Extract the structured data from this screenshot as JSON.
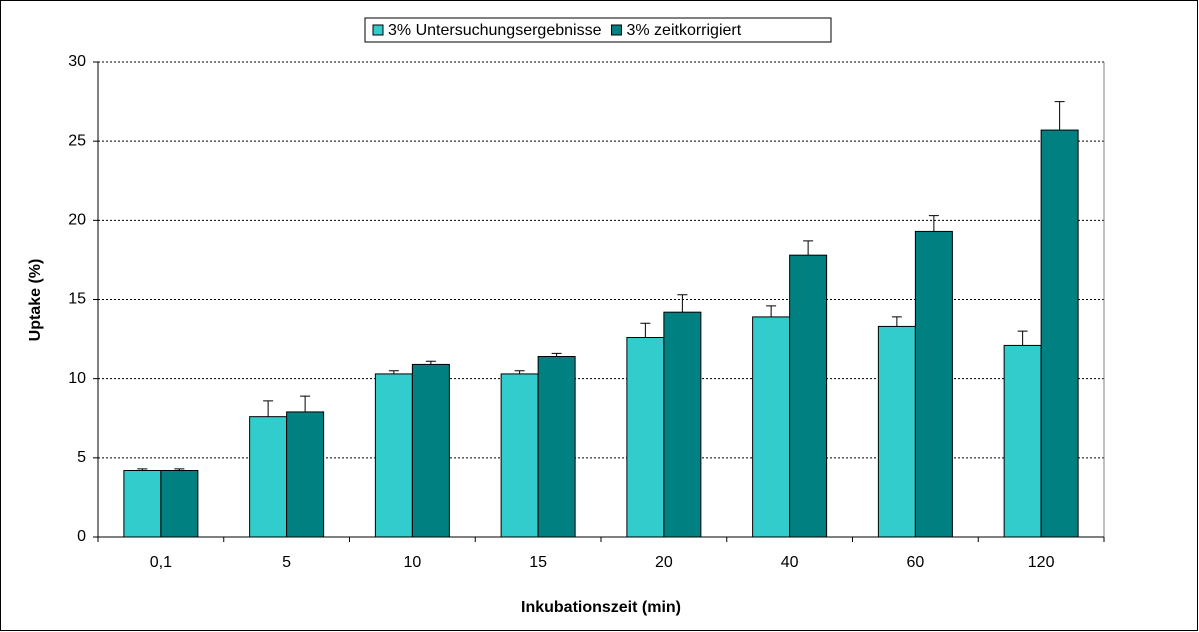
{
  "chart_data": {
    "type": "bar",
    "x_label": "Inkubationszeit (min)",
    "y_label": "Uptake (%)",
    "categories": [
      "0,1",
      "5",
      "10",
      "15",
      "20",
      "40",
      "60",
      "120"
    ],
    "series": [
      {
        "name": "3% Untersuchungsergebnisse",
        "color": "#33cccc",
        "values": [
          4.2,
          7.6,
          10.3,
          10.3,
          12.6,
          13.9,
          13.3,
          12.1
        ],
        "error": [
          0.1,
          1.0,
          0.2,
          0.2,
          0.9,
          0.7,
          0.6,
          0.9
        ]
      },
      {
        "name": "3% zeitkorrigiert",
        "color": "#008080",
        "values": [
          4.2,
          7.9,
          10.9,
          11.4,
          14.2,
          17.8,
          19.3,
          25.7
        ],
        "error": [
          0.1,
          1.0,
          0.2,
          0.2,
          1.1,
          0.9,
          1.0,
          1.8
        ]
      }
    ],
    "ylim": [
      0,
      30
    ],
    "yticks": [
      0,
      5,
      10,
      15,
      20,
      25,
      30
    ],
    "grid": true,
    "legend": "top"
  }
}
